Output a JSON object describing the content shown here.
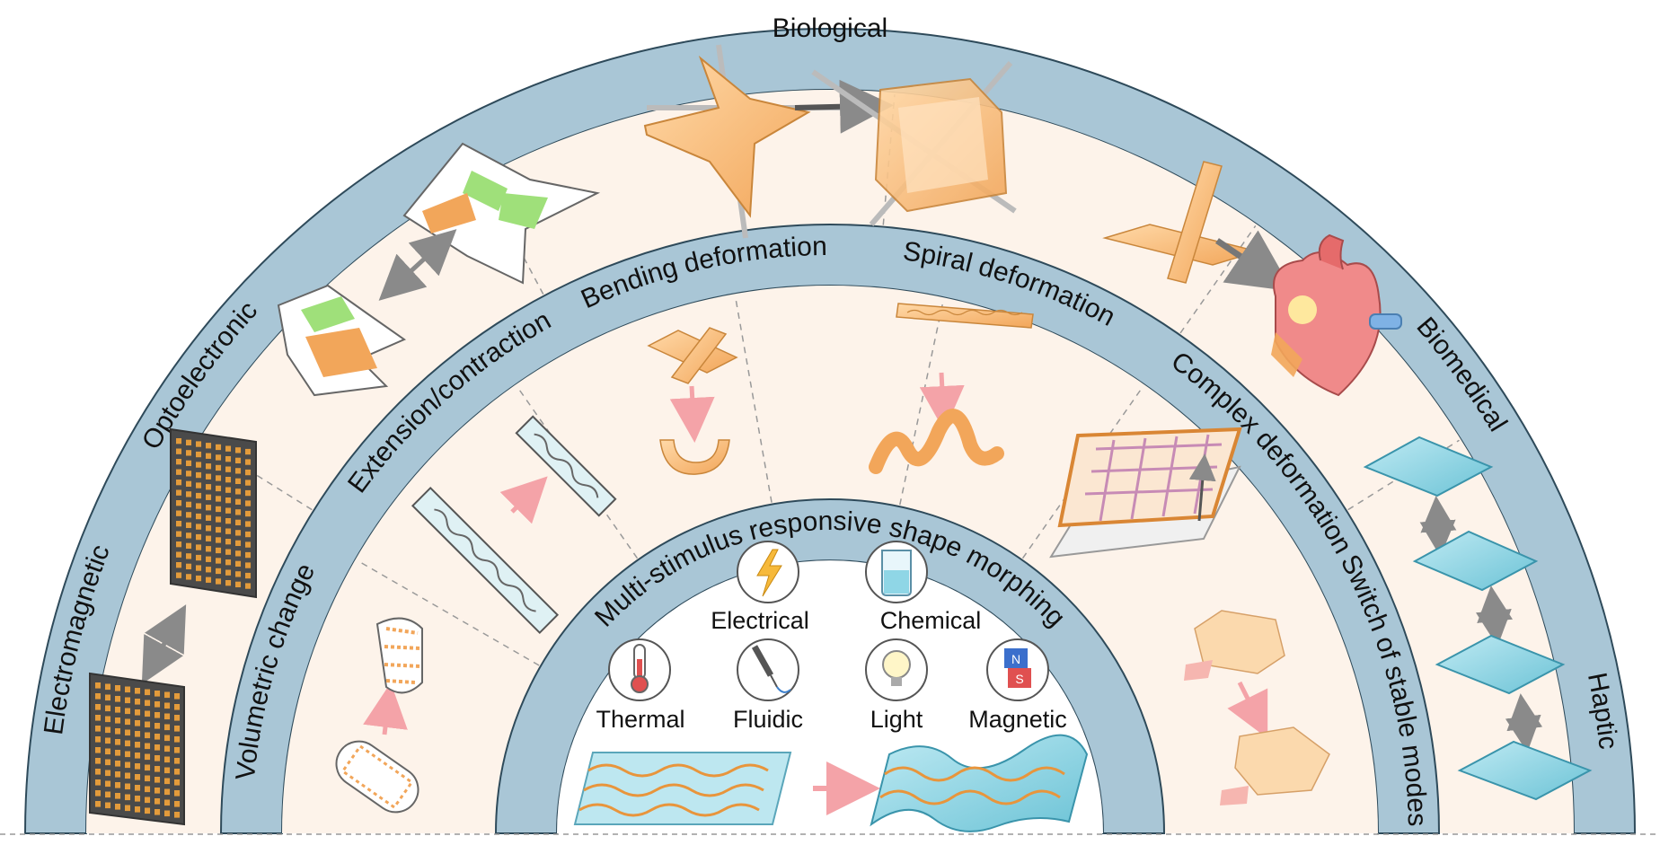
{
  "rings": {
    "outer": {
      "title": "Biological",
      "left_label": "Optoelectronic",
      "right_label": "Biomedical",
      "far_left_label": "Electromagnetic",
      "far_right_label": "Haptic"
    },
    "middle": {
      "labels": [
        "Volumetric change",
        "Extension/contraction",
        "Bending deformation",
        "Spiral deformation",
        "Complex deformation",
        "Switch of stable modes"
      ]
    },
    "inner": {
      "title": "Multi-stimulus responsive shape morphing"
    }
  },
  "stimuli": [
    {
      "label": "Electrical",
      "icon": "lightning-icon"
    },
    {
      "label": "Chemical",
      "icon": "beaker-icon"
    },
    {
      "label": "Thermal",
      "icon": "thermometer-icon"
    },
    {
      "label": "Fluidic",
      "icon": "syringe-icon"
    },
    {
      "label": "Light",
      "icon": "bulb-icon"
    },
    {
      "label": "Magnetic",
      "icon": "magnet-icon"
    }
  ],
  "colors": {
    "band_fill": "#a9c6d6",
    "band_stroke": "#2e4a5a",
    "background": "#fdf3ea",
    "orange": "#f2a65a",
    "orange_dark": "#d98634",
    "green": "#9fe07a",
    "arrow_pink": "#f4a3a8",
    "arrow_gray": "#8a8a8a",
    "cyan": "#8fd6e6"
  }
}
